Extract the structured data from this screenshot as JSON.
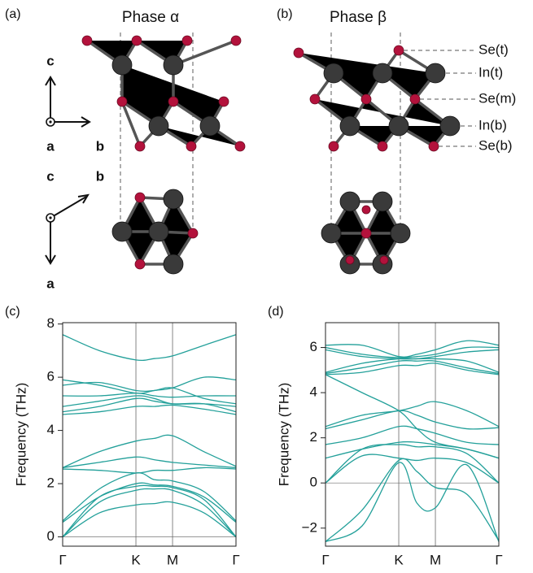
{
  "figure": {
    "panel_labels": [
      "(a)",
      "(b)"
    ],
    "structure_titles": [
      "Phase α",
      "Phase β"
    ],
    "axes_top": [
      "c",
      "a",
      "b"
    ],
    "axes_bottom": [
      "c",
      "b",
      "a"
    ],
    "atom_labels": [
      {
        "text": "Se(t)",
        "color": "#b3123c"
      },
      {
        "text": "In(t)",
        "color": "#666666"
      },
      {
        "text": "Se(m)",
        "color": "#b3123c"
      },
      {
        "text": "In(b)",
        "color": "#666666"
      },
      {
        "text": "Se(b)",
        "color": "#b3123c"
      }
    ]
  },
  "chart_data": [
    {
      "type": "line",
      "label": "(c)",
      "ylabel": "Frequency (THz)",
      "color": "#23a09a",
      "x": [
        0,
        0.5,
        1,
        1.25,
        1.5,
        1.93,
        2.366
      ],
      "xlim": [
        0,
        2.366
      ],
      "xticks": [
        {
          "value": 0,
          "label": "Γ"
        },
        {
          "value": 1,
          "label": "K"
        },
        {
          "value": 1.5,
          "label": "M"
        },
        {
          "value": 2.366,
          "label": "Γ"
        }
      ],
      "ylim": [
        -0.35,
        8.05
      ],
      "yticks": [
        0,
        2,
        4,
        6,
        8
      ],
      "series": [
        {
          "values": [
            0,
            0.9,
            1.2,
            1.25,
            1.3,
            0.9,
            0
          ]
        },
        {
          "values": [
            0,
            1.3,
            1.75,
            1.8,
            1.75,
            1.2,
            0
          ]
        },
        {
          "values": [
            0,
            1.5,
            1.9,
            1.9,
            1.85,
            1.4,
            0
          ]
        },
        {
          "values": [
            0.55,
            1.5,
            2.0,
            1.95,
            1.9,
            1.5,
            0.55
          ]
        },
        {
          "values": [
            0.6,
            1.8,
            2.4,
            2.15,
            2.1,
            1.7,
            0.6
          ]
        },
        {
          "values": [
            2.55,
            2.5,
            2.4,
            2.5,
            2.5,
            2.6,
            2.55
          ]
        },
        {
          "values": [
            2.6,
            2.8,
            3.0,
            2.9,
            2.8,
            2.7,
            2.6
          ]
        },
        {
          "values": [
            2.6,
            3.2,
            3.6,
            3.7,
            3.8,
            3.2,
            2.65
          ]
        },
        {
          "values": [
            4.6,
            4.7,
            4.9,
            4.9,
            4.95,
            4.8,
            4.6
          ]
        },
        {
          "values": [
            4.7,
            4.9,
            5.2,
            5.1,
            5.0,
            5.0,
            4.7
          ]
        },
        {
          "values": [
            4.9,
            5.1,
            5.3,
            5.2,
            5.0,
            5.0,
            4.9
          ]
        },
        {
          "values": [
            5.3,
            5.3,
            5.4,
            5.3,
            5.25,
            5.3,
            5.3
          ]
        },
        {
          "values": [
            5.9,
            5.7,
            5.4,
            5.5,
            5.6,
            6.0,
            5.9
          ]
        },
        {
          "values": [
            5.7,
            5.8,
            5.5,
            5.5,
            5.6,
            5.2,
            5.0
          ]
        },
        {
          "values": [
            7.6,
            7.0,
            6.65,
            6.7,
            6.8,
            7.2,
            7.6
          ]
        }
      ]
    },
    {
      "type": "line",
      "label": "(d)",
      "ylabel": "Frequency (THz)",
      "color": "#23a09a",
      "x": [
        0,
        0.5,
        1,
        1.25,
        1.5,
        1.93,
        2.366
      ],
      "xlim": [
        0,
        2.366
      ],
      "xticks": [
        {
          "value": 0,
          "label": "Γ"
        },
        {
          "value": 1,
          "label": "K"
        },
        {
          "value": 1.5,
          "label": "M"
        },
        {
          "value": 2.366,
          "label": "Γ"
        }
      ],
      "ylim": [
        -2.8,
        7.1
      ],
      "yticks": [
        {
          "value": -2,
          "label": "−2"
        },
        0,
        2,
        4,
        6
      ],
      "series": [
        {
          "values": [
            -2.6,
            -1.9,
            0.9,
            -0.9,
            -1.1,
            0.8,
            -2.6
          ]
        },
        {
          "values": [
            -2.6,
            -1.2,
            1.0,
            0.5,
            -0.2,
            -0.5,
            -2.55
          ]
        },
        {
          "values": [
            0,
            1.2,
            1.1,
            1.0,
            1.1,
            0.9,
            0
          ]
        },
        {
          "values": [
            0,
            1.5,
            1.7,
            1.6,
            1.6,
            1.3,
            0
          ]
        },
        {
          "values": [
            1.1,
            1.5,
            1.8,
            1.8,
            1.7,
            1.5,
            1.1
          ]
        },
        {
          "values": [
            1.7,
            2.0,
            2.5,
            2.4,
            2.2,
            1.8,
            1.7
          ]
        },
        {
          "values": [
            2.4,
            2.8,
            3.2,
            3.0,
            2.7,
            2.4,
            2.45
          ]
        },
        {
          "values": [
            2.5,
            3.0,
            3.2,
            3.4,
            3.6,
            3.2,
            2.5
          ]
        },
        {
          "values": [
            4.8,
            4.0,
            3.2,
            2.4,
            1.8,
            1.5,
            1.1
          ]
        },
        {
          "values": [
            4.8,
            4.9,
            5.2,
            5.2,
            5.3,
            5.0,
            4.8
          ]
        },
        {
          "values": [
            4.85,
            5.1,
            5.4,
            5.4,
            5.4,
            5.1,
            4.85
          ]
        },
        {
          "values": [
            4.9,
            5.3,
            5.5,
            5.5,
            5.5,
            5.4,
            4.9
          ]
        },
        {
          "values": [
            5.9,
            5.6,
            5.5,
            5.5,
            5.6,
            5.8,
            5.9
          ]
        },
        {
          "values": [
            6.0,
            5.7,
            5.55,
            5.6,
            5.7,
            6.0,
            6.0
          ]
        },
        {
          "values": [
            6.1,
            6.1,
            5.6,
            5.7,
            5.9,
            6.3,
            6.1
          ]
        }
      ]
    }
  ]
}
